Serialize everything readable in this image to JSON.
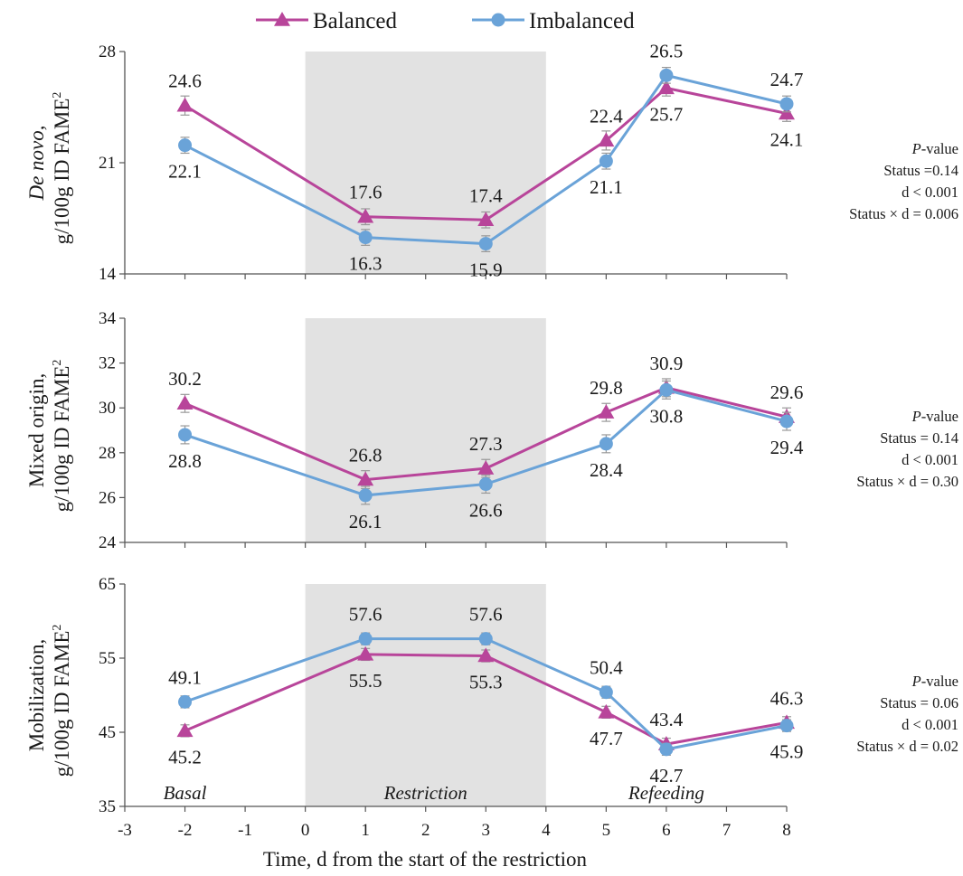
{
  "chart_data": {
    "type": "line",
    "xlabel": "Time, d from the start of the restriction",
    "xlim": [
      -3,
      8
    ],
    "xticks": [
      -3,
      -2,
      -1,
      0,
      1,
      2,
      3,
      4,
      5,
      6,
      7,
      8
    ],
    "shaded_region": [
      0,
      4
    ],
    "phases": [
      {
        "label": "Basal",
        "x": -2
      },
      {
        "label": "Restriction",
        "x": 2
      },
      {
        "label": "Refeeding",
        "x": 6
      }
    ],
    "legend": {
      "position": "top-center",
      "entries": [
        {
          "name": "Balanced",
          "color": "#b8459a",
          "marker": "triangle"
        },
        {
          "name": "Imbalanced",
          "color": "#6aa3d8",
          "marker": "circle"
        }
      ]
    },
    "panels": [
      {
        "ylabel_italic": "De novo,",
        "ylabel_line2": "g/100g ID FAME",
        "ylabel_sup": "2",
        "ylim": [
          14,
          28
        ],
        "yticks": [
          14,
          21,
          28
        ],
        "x": [
          -2,
          1,
          3,
          5,
          6,
          8
        ],
        "series": [
          {
            "name": "Balanced",
            "values": [
              24.6,
              17.6,
              17.4,
              22.4,
              25.7,
              24.1
            ],
            "err": [
              0.6,
              0.5,
              0.5,
              0.6,
              0.5,
              0.5
            ],
            "label_pos": [
              "above",
              "above",
              "above",
              "above",
              "below",
              "below"
            ]
          },
          {
            "name": "Imbalanced",
            "values": [
              22.1,
              16.3,
              15.9,
              21.1,
              26.5,
              24.7
            ],
            "err": [
              0.5,
              0.5,
              0.5,
              0.5,
              0.5,
              0.5
            ],
            "label_pos": [
              "below",
              "below",
              "below",
              "below",
              "above",
              "above"
            ]
          }
        ],
        "labels": [
          {
            "text": "24.6",
            "x": -2,
            "y": 24.6,
            "pos": "above"
          },
          {
            "text": "17.6",
            "x": 1,
            "y": 17.6,
            "pos": "above"
          },
          {
            "text": "17.4",
            "x": 3,
            "y": 17.4,
            "pos": "above"
          },
          {
            "text": "22.4",
            "x": 5,
            "y": 22.4,
            "pos": "above"
          },
          {
            "text": "25.7",
            "x": 6,
            "y": 25.7,
            "pos": "below"
          },
          {
            "text": "24.1",
            "x": 8,
            "y": 24.1,
            "pos": "below"
          },
          {
            "text": "22.1",
            "x": -2,
            "y": 22.1,
            "pos": "below"
          },
          {
            "text": "16.3",
            "x": 1,
            "y": 16.3,
            "pos": "below"
          },
          {
            "text": "15.9",
            "x": 3,
            "y": 15.9,
            "pos": "below"
          },
          {
            "text": "21.1",
            "x": 5,
            "y": 21.1,
            "pos": "below"
          },
          {
            "text": "26.5",
            "x": 6,
            "y": 26.5,
            "pos": "above"
          },
          {
            "text": "24.7",
            "x": 8,
            "y": 24.7,
            "pos": "above"
          }
        ],
        "pvalues": {
          "title_italic": "P",
          "title_rest": "-value",
          "lines": [
            "Status =0.14",
            "d   < 0.001",
            "Status × d = 0.006"
          ]
        }
      },
      {
        "ylabel_italic": "",
        "ylabel_line1": "Mixed origin,",
        "ylabel_line2": "g/100g ID FAME",
        "ylabel_sup": "2",
        "ylim": [
          24,
          34
        ],
        "yticks": [
          24,
          26,
          28,
          30,
          32,
          34
        ],
        "x": [
          -2,
          1,
          3,
          5,
          6,
          8
        ],
        "series": [
          {
            "name": "Balanced",
            "values": [
              30.2,
              26.8,
              27.3,
              29.8,
              30.9,
              29.6
            ],
            "err": [
              0.4,
              0.4,
              0.4,
              0.4,
              0.4,
              0.4
            ],
            "label_pos": [
              "above",
              "above",
              "above",
              "above",
              "above",
              "above"
            ]
          },
          {
            "name": "Imbalanced",
            "values": [
              28.8,
              26.1,
              26.6,
              28.4,
              30.8,
              29.4
            ],
            "err": [
              0.4,
              0.4,
              0.4,
              0.4,
              0.4,
              0.4
            ],
            "label_pos": [
              "below",
              "below",
              "below",
              "below",
              "below",
              "below"
            ]
          }
        ],
        "labels": [
          {
            "text": "30.2",
            "x": -2,
            "y": 30.2,
            "pos": "above"
          },
          {
            "text": "26.8",
            "x": 1,
            "y": 26.8,
            "pos": "above"
          },
          {
            "text": "27.3",
            "x": 3,
            "y": 27.3,
            "pos": "above"
          },
          {
            "text": "29.8",
            "x": 5,
            "y": 29.8,
            "pos": "above"
          },
          {
            "text": "30.9",
            "x": 6,
            "y": 30.9,
            "pos": "above"
          },
          {
            "text": "29.6",
            "x": 8,
            "y": 29.6,
            "pos": "above"
          },
          {
            "text": "28.8",
            "x": -2,
            "y": 28.8,
            "pos": "below"
          },
          {
            "text": "26.1",
            "x": 1,
            "y": 26.1,
            "pos": "below"
          },
          {
            "text": "26.6",
            "x": 3,
            "y": 26.6,
            "pos": "below"
          },
          {
            "text": "28.4",
            "x": 5,
            "y": 28.4,
            "pos": "below"
          },
          {
            "text": "30.8",
            "x": 6,
            "y": 30.8,
            "pos": "below"
          },
          {
            "text": "29.4",
            "x": 8,
            "y": 29.4,
            "pos": "below"
          }
        ],
        "pvalues": {
          "title_italic": "P",
          "title_rest": "-value",
          "lines": [
            "Status  = 0.14",
            "d   < 0.001",
            "Status × d = 0.30"
          ]
        }
      },
      {
        "ylabel_italic": "",
        "ylabel_line1": "Mobilization,",
        "ylabel_line2": "g/100g ID FAME",
        "ylabel_sup": "2",
        "ylim": [
          35,
          65
        ],
        "yticks": [
          35,
          45,
          55,
          65
        ],
        "x": [
          -2,
          1,
          3,
          5,
          6,
          8
        ],
        "series": [
          {
            "name": "Balanced",
            "values": [
              45.2,
              55.5,
              55.3,
              47.7,
              43.4,
              46.3
            ],
            "err": [
              0.8,
              0.8,
              0.8,
              0.8,
              0.8,
              0.8
            ],
            "label_pos": [
              "below",
              "below",
              "below",
              "below",
              "above",
              "above"
            ]
          },
          {
            "name": "Imbalanced",
            "values": [
              49.1,
              57.6,
              57.6,
              50.4,
              42.7,
              45.9
            ],
            "err": [
              0.8,
              0.8,
              0.8,
              0.8,
              0.8,
              0.8
            ],
            "label_pos": [
              "above",
              "above",
              "above",
              "above",
              "below",
              "below"
            ]
          }
        ],
        "labels": [
          {
            "text": "45.2",
            "x": -2,
            "y": 45.2,
            "pos": "below"
          },
          {
            "text": "55.5",
            "x": 1,
            "y": 55.5,
            "pos": "below"
          },
          {
            "text": "55.3",
            "x": 3,
            "y": 55.3,
            "pos": "below"
          },
          {
            "text": "47.7",
            "x": 5,
            "y": 47.7,
            "pos": "below"
          },
          {
            "text": "43.4",
            "x": 6,
            "y": 43.4,
            "pos": "above"
          },
          {
            "text": "46.3",
            "x": 8,
            "y": 46.3,
            "pos": "above"
          },
          {
            "text": "49.1",
            "x": -2,
            "y": 49.1,
            "pos": "above"
          },
          {
            "text": "57.6",
            "x": 1,
            "y": 57.6,
            "pos": "above"
          },
          {
            "text": "57.6",
            "x": 3,
            "y": 57.6,
            "pos": "above"
          },
          {
            "text": "50.4",
            "x": 5,
            "y": 50.4,
            "pos": "above"
          },
          {
            "text": "42.7",
            "x": 6,
            "y": 42.7,
            "pos": "below"
          },
          {
            "text": "45.9",
            "x": 8,
            "y": 45.9,
            "pos": "below"
          }
        ],
        "pvalues": {
          "title_italic": "P",
          "title_rest": "-value",
          "lines": [
            "Status = 0.06",
            "d   < 0.001",
            "Status × d = 0.02"
          ]
        }
      }
    ]
  }
}
